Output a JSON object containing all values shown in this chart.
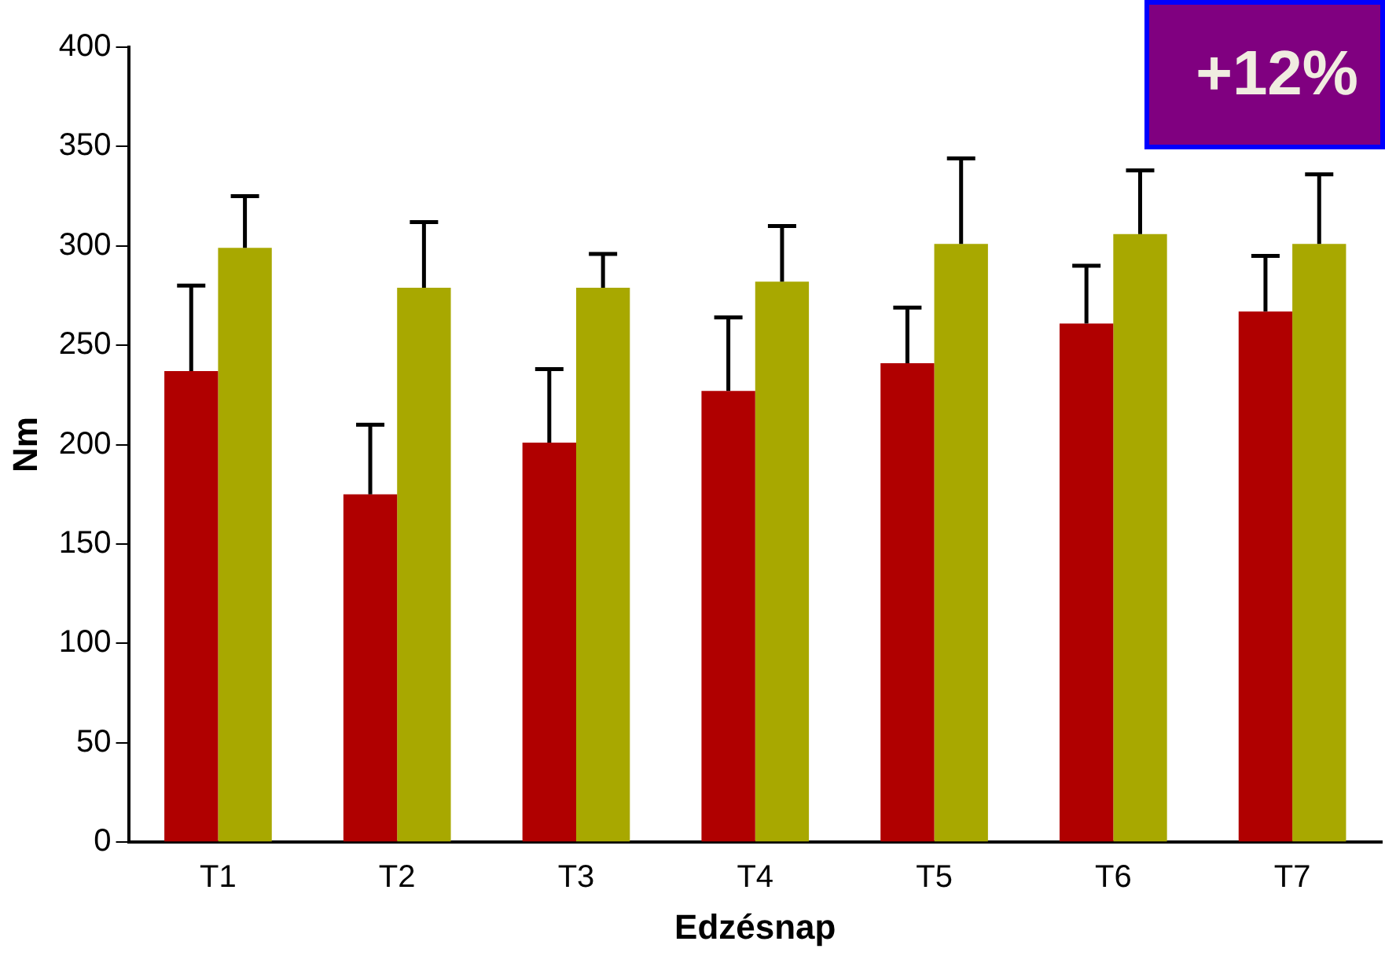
{
  "chart_data": {
    "type": "bar",
    "xlabel": "Edzésnap",
    "ylabel": "Nm",
    "categories": [
      "T1",
      "T2",
      "T3",
      "T4",
      "T5",
      "T6",
      "T7"
    ],
    "series": [
      {
        "color": "#b00000",
        "values": [
          237,
          175,
          201,
          227,
          241,
          261,
          267
        ],
        "errors": [
          [
            237,
            280
          ],
          [
            175,
            210
          ],
          [
            201,
            238
          ],
          [
            227,
            264
          ],
          [
            241,
            269
          ],
          [
            261,
            290
          ],
          [
            267,
            295
          ]
        ]
      },
      {
        "color": "#a8a800",
        "values": [
          299,
          279,
          279,
          282,
          301,
          306,
          301
        ],
        "errors": [
          [
            299,
            325
          ],
          [
            279,
            312
          ],
          [
            279,
            296
          ],
          [
            282,
            310
          ],
          [
            301,
            344
          ],
          [
            306,
            338
          ],
          [
            301,
            336
          ]
        ]
      }
    ],
    "ylim": [
      0,
      400
    ],
    "yticks": [
      0,
      50,
      100,
      150,
      200,
      250,
      300,
      350,
      400
    ],
    "grid": false,
    "legend": false,
    "annotations": [
      "+12%"
    ]
  }
}
